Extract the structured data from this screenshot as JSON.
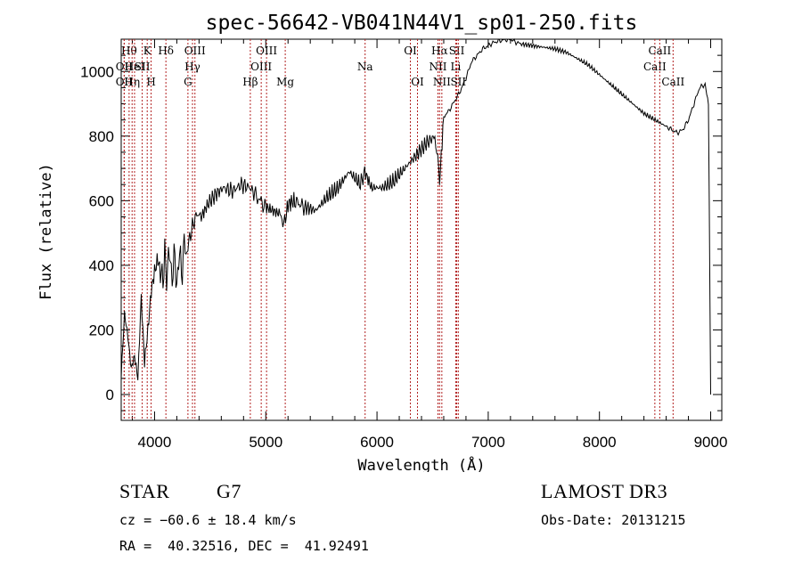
{
  "chart_data": {
    "type": "line",
    "title": "spec-56642-VB041N44V1_sp01-250.fits",
    "xlabel": "Wavelength (Å)",
    "ylabel": "Flux (relative)",
    "xlim": [
      3700,
      9100
    ],
    "ylim": [
      -80,
      1100
    ],
    "xticks": [
      4000,
      5000,
      6000,
      7000,
      8000,
      9000
    ],
    "yticks": [
      0,
      200,
      400,
      600,
      800,
      1000
    ],
    "series": [
      {
        "name": "flux",
        "x": [
          3700,
          3730,
          3760,
          3790,
          3820,
          3850,
          3880,
          3910,
          3940,
          3970,
          4000,
          4030,
          4060,
          4100,
          4150,
          4200,
          4250,
          4300,
          4340,
          4380,
          4420,
          4480,
          4550,
          4620,
          4700,
          4780,
          4860,
          4900,
          4950,
          5000,
          5060,
          5120,
          5170,
          5200,
          5260,
          5350,
          5450,
          5550,
          5650,
          5750,
          5850,
          5890,
          5950,
          6050,
          6150,
          6250,
          6350,
          6450,
          6520,
          6563,
          6600,
          6650,
          6700,
          6750,
          6800,
          6850,
          6900,
          6950,
          7000,
          7050,
          7100,
          7150,
          7200,
          7250,
          7300,
          7400,
          7500,
          7600,
          7700,
          7800,
          7900,
          8000,
          8100,
          8200,
          8300,
          8400,
          8500,
          8600,
          8650,
          8700,
          8750,
          8800,
          8850,
          8900,
          8950,
          8980,
          9000
        ],
        "y": [
          60,
          250,
          180,
          80,
          120,
          50,
          300,
          100,
          200,
          320,
          380,
          420,
          360,
          410,
          400,
          380,
          420,
          460,
          520,
          560,
          550,
          590,
          620,
          640,
          630,
          650,
          640,
          620,
          600,
          580,
          570,
          560,
          530,
          590,
          600,
          580,
          570,
          610,
          640,
          690,
          650,
          690,
          640,
          640,
          660,
          700,
          740,
          780,
          800,
          660,
          860,
          880,
          910,
          940,
          980,
          1030,
          1050,
          1070,
          1080,
          1090,
          1095,
          1098,
          1100,
          1090,
          1085,
          1080,
          1075,
          1070,
          1060,
          1040,
          1020,
          990,
          960,
          930,
          900,
          870,
          850,
          830,
          820,
          810,
          820,
          850,
          900,
          950,
          960,
          900,
          0
        ]
      }
    ],
    "lines": [
      {
        "wave": 3771,
        "label": "Hθ",
        "row": 1
      },
      {
        "wave": 3727,
        "label": "OII",
        "row": 2
      },
      {
        "wave": 3727,
        "label": "OII",
        "row": 3
      },
      {
        "wave": 3798,
        "label": "Hη",
        "row": 3
      },
      {
        "wave": 3820,
        "label": "HeI",
        "row": 2
      },
      {
        "wave": 3889,
        "label": "SII",
        "row": 2
      },
      {
        "wave": 3934,
        "label": "K",
        "row": 1
      },
      {
        "wave": 3969,
        "label": "H",
        "row": 3
      },
      {
        "wave": 4102,
        "label": "Hδ",
        "row": 1
      },
      {
        "wave": 4300,
        "label": "G",
        "row": 3
      },
      {
        "wave": 4341,
        "label": "Hγ",
        "row": 2
      },
      {
        "wave": 4363,
        "label": "OIII",
        "row": 1
      },
      {
        "wave": 4861,
        "label": "Hβ",
        "row": 3
      },
      {
        "wave": 4959,
        "label": "OIII",
        "row": 2
      },
      {
        "wave": 5007,
        "label": "OIII",
        "row": 1
      },
      {
        "wave": 5175,
        "label": "Mg",
        "row": 3
      },
      {
        "wave": 5893,
        "label": "Na",
        "row": 2
      },
      {
        "wave": 6300,
        "label": "OI",
        "row": 1
      },
      {
        "wave": 6364,
        "label": "OI",
        "row": 3
      },
      {
        "wave": 6548,
        "label": "NII",
        "row": 2
      },
      {
        "wave": 6563,
        "label": "Hα",
        "row": 1
      },
      {
        "wave": 6583,
        "label": "NII",
        "row": 3
      },
      {
        "wave": 6708,
        "label": "Li",
        "row": 2
      },
      {
        "wave": 6717,
        "label": "SII",
        "row": 1
      },
      {
        "wave": 6731,
        "label": "SII",
        "row": 3
      },
      {
        "wave": 8498,
        "label": "CaII",
        "row": 2
      },
      {
        "wave": 8542,
        "label": "CaII",
        "row": 1
      },
      {
        "wave": 8662,
        "label": "CaII",
        "row": 3
      }
    ]
  },
  "footer": {
    "object_class": "STAR",
    "subclass": "G7",
    "cz": "cz = −60.6 ± 18.4 km/s",
    "coords": "RA =  40.32516, DEC =  41.92491",
    "survey": "LAMOST DR3",
    "obs_date": "Obs-Date: 20131215"
  }
}
